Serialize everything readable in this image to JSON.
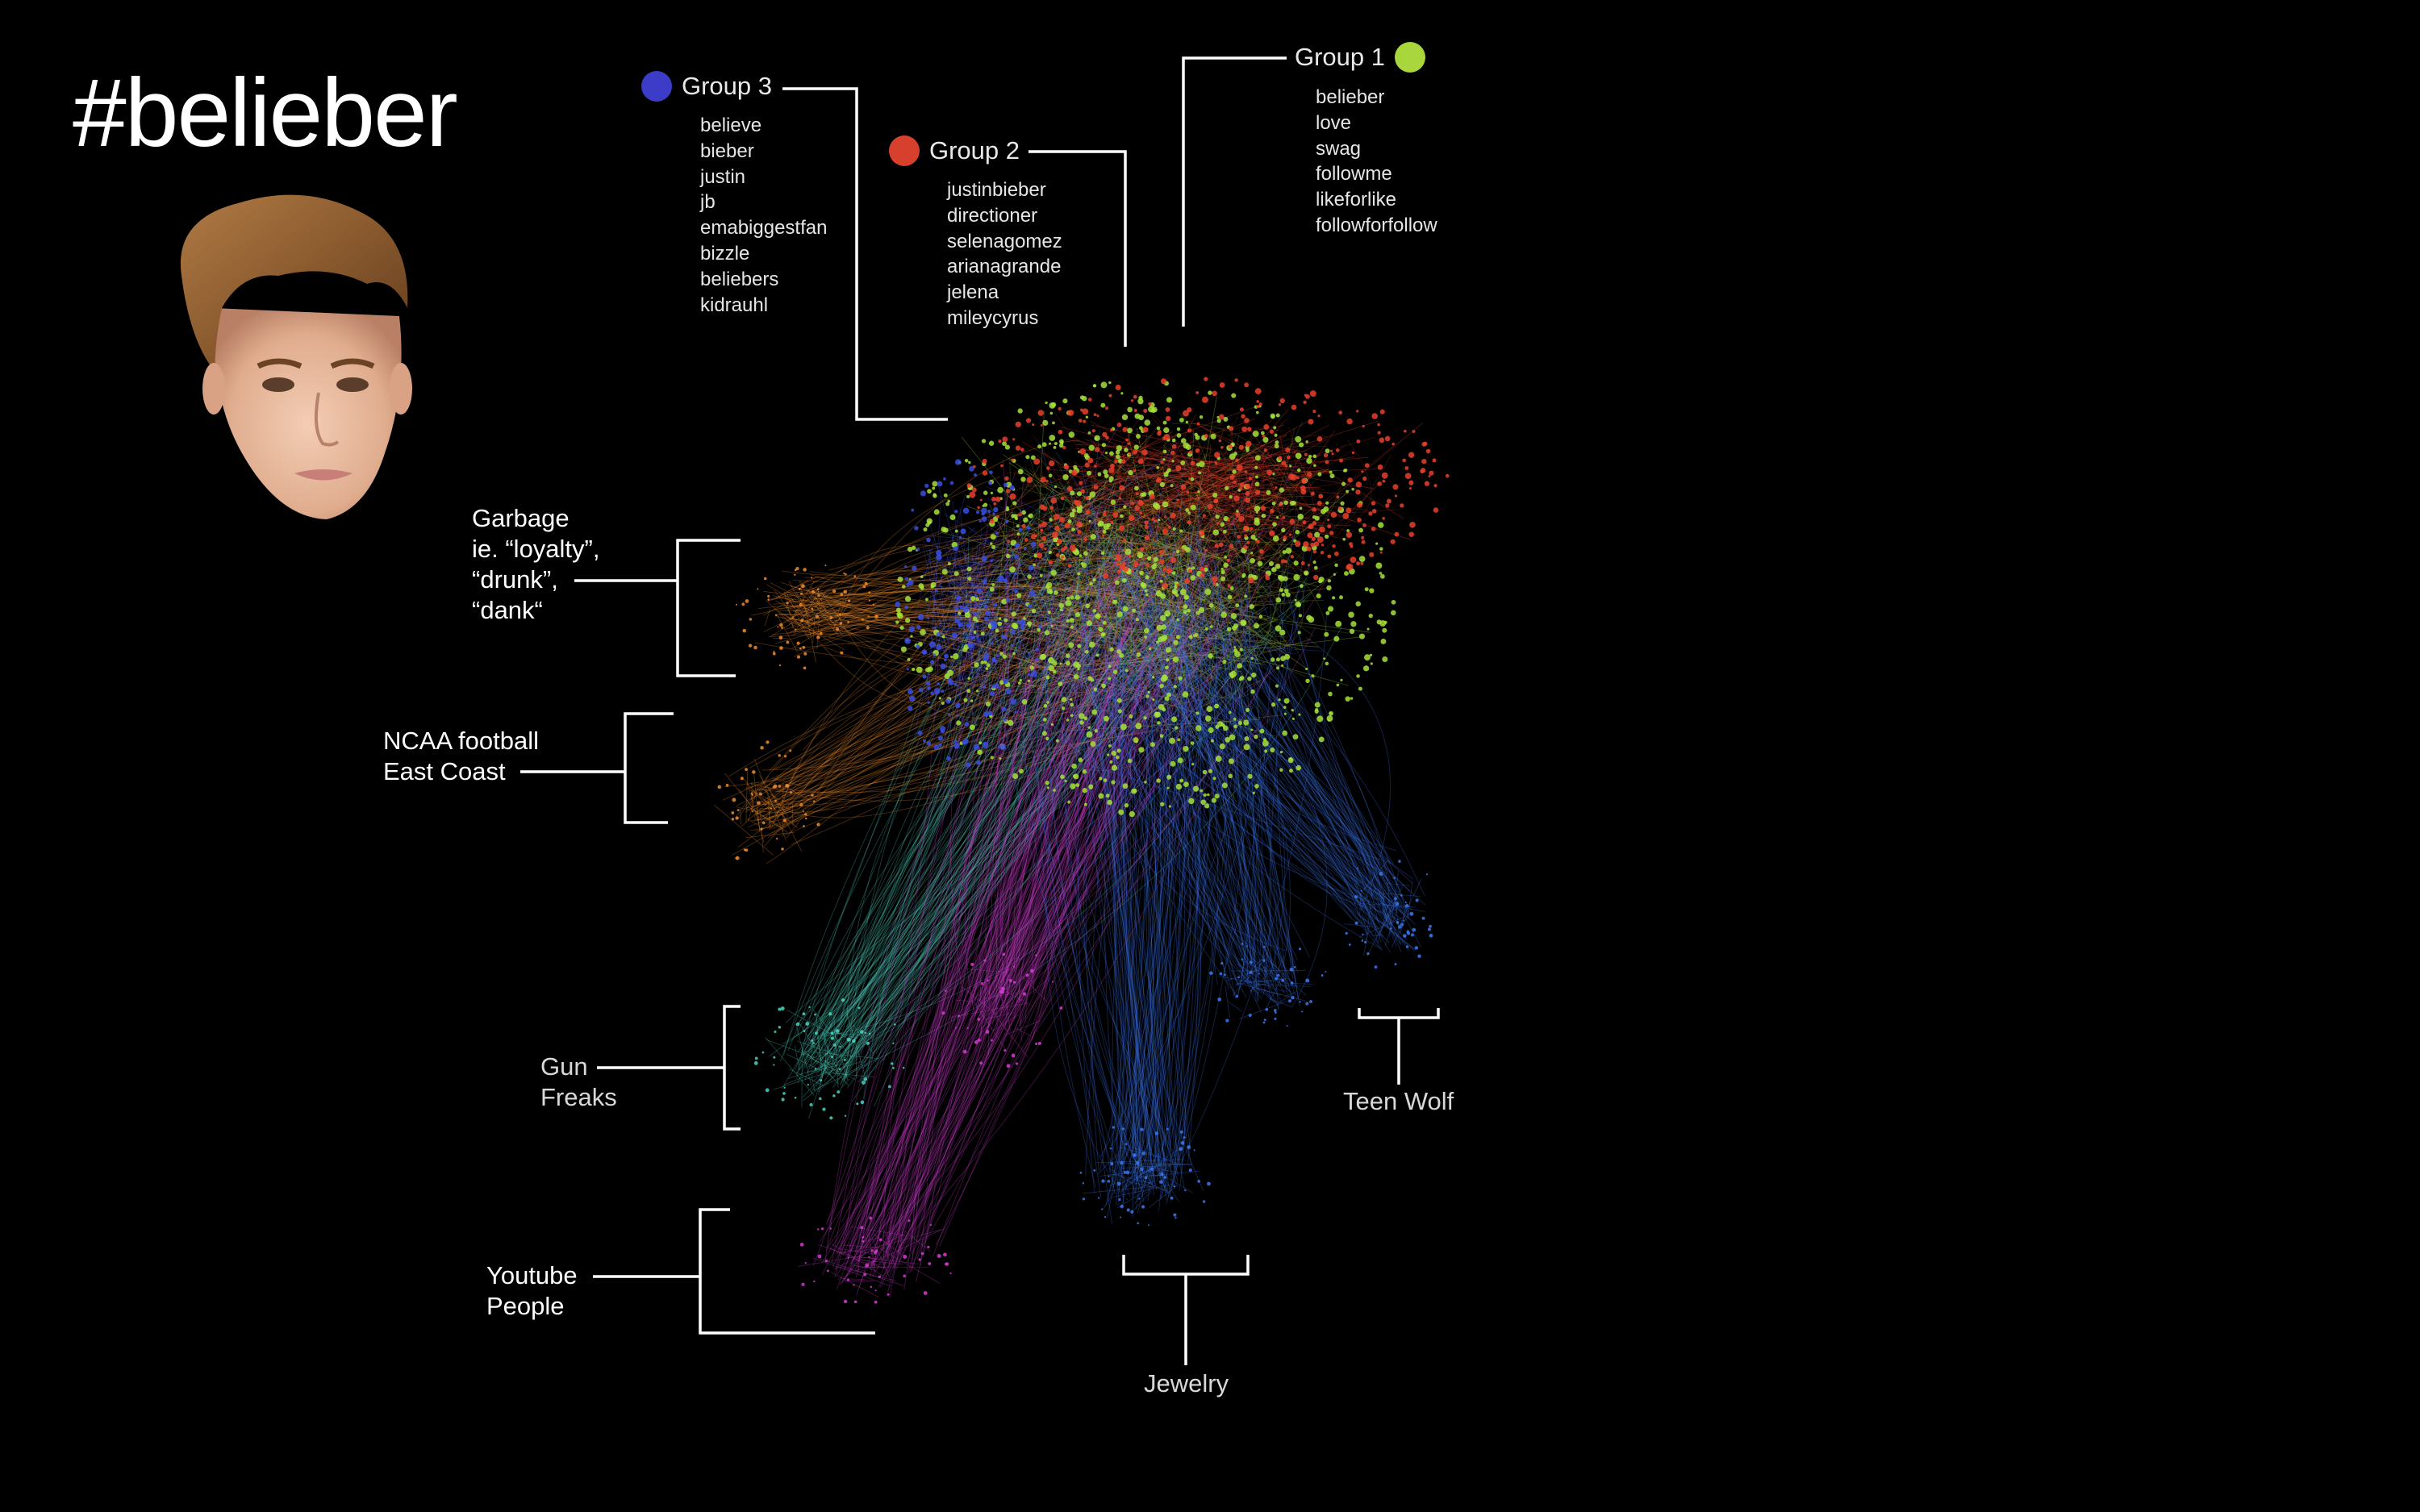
{
  "title": "#belieber",
  "groups": [
    {
      "name": "Group 3",
      "color": "#3c3cc8",
      "terms": [
        "believe",
        "bieber",
        "justin",
        "jb",
        "emabiggestfan",
        "bizzle",
        "beliebers",
        "kidrauhl"
      ]
    },
    {
      "name": "Group 2",
      "color": "#d8402e",
      "terms": [
        "justinbieber",
        "directioner",
        "selenagomez",
        "arianagrande",
        "jelena",
        "mileycyrus"
      ]
    },
    {
      "name": "Group 1",
      "color": "#a8d63c",
      "terms": [
        "belieber",
        "love",
        "swag",
        "followme",
        "likeforlike",
        "followforfollow"
      ]
    }
  ],
  "clusters": {
    "garbage": "Garbage\nie. “loyalty”,\n“drunk”,\n“dank“",
    "ncaa": "NCAA football\nEast Coast",
    "gun": "Gun\nFreaks",
    "youtube": "Youtube\nPeople",
    "teen_wolf": "Teen Wolf",
    "jewelry": "Jewelry"
  },
  "network_colors": {
    "green": "#a6e03a",
    "red": "#e8402a",
    "blue": "#3a4ee0",
    "orange": "#f08c2a",
    "teal": "#4ed2c0",
    "magenta": "#d23cd2",
    "skyblue": "#3c78f0"
  }
}
